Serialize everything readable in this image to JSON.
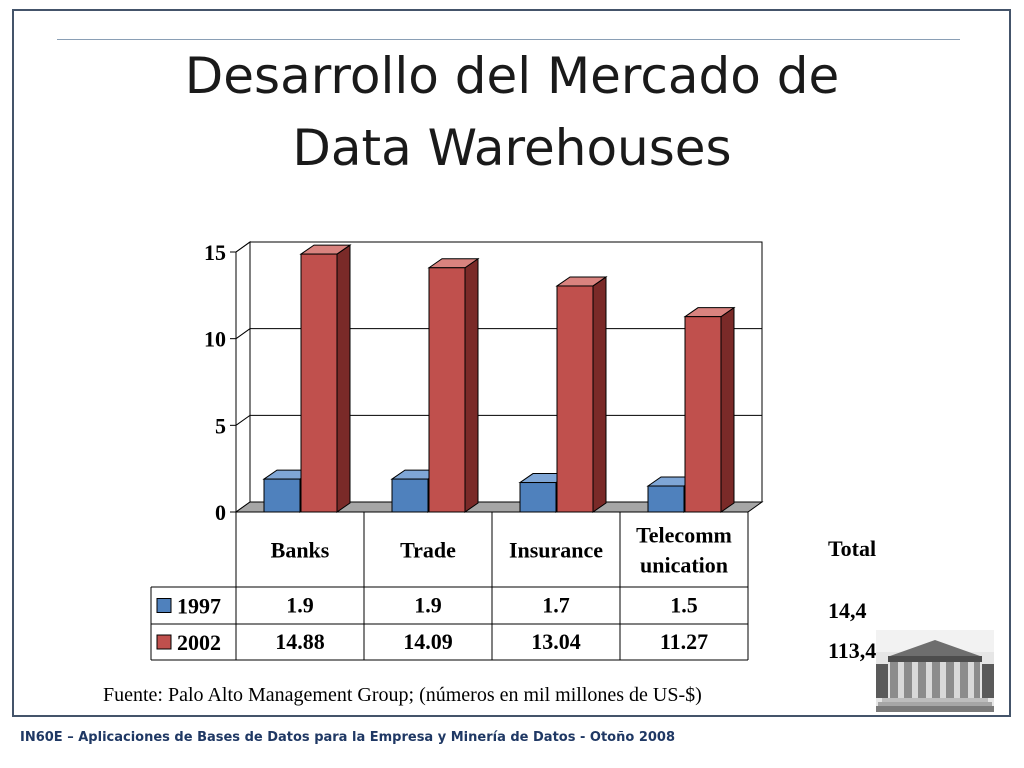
{
  "slide": {
    "title_line1": "Desarrollo del Mercado de",
    "title_line2": "Data Warehouses",
    "source_note": "Fuente: Palo Alto Management Group; (números en mil millones de US-$)",
    "footer": "IN60E – Aplicaciones de Bases de Datos para la Empresa y Minería de Datos - Otoño 2008"
  },
  "totals": {
    "header": "Total",
    "value_1997": "14,4",
    "value_2002": "113,4"
  },
  "chart_data": {
    "type": "bar",
    "title": "",
    "xlabel": "",
    "ylabel": "",
    "categories": [
      "Banks",
      "Trade",
      "Insurance",
      "Telecommunication"
    ],
    "category_labels": [
      [
        "Banks"
      ],
      [
        "Trade"
      ],
      [
        "Insurance"
      ],
      [
        "Telecomm",
        "unication"
      ]
    ],
    "series": [
      {
        "name": "1997",
        "values": [
          1.9,
          1.9,
          1.7,
          1.5
        ],
        "labels": [
          "1.9",
          "1.9",
          "1.7",
          "1.5"
        ],
        "color": "#4f81bd"
      },
      {
        "name": "2002",
        "values": [
          14.88,
          14.09,
          13.04,
          11.27
        ],
        "labels": [
          "14.88",
          "14.09",
          "13.04",
          "11.27"
        ],
        "color": "#c0504d"
      }
    ],
    "ylim": [
      0,
      15
    ],
    "yticks": [
      0,
      5,
      10,
      15
    ],
    "grid": true,
    "three_d": true,
    "legend": "data-table"
  }
}
